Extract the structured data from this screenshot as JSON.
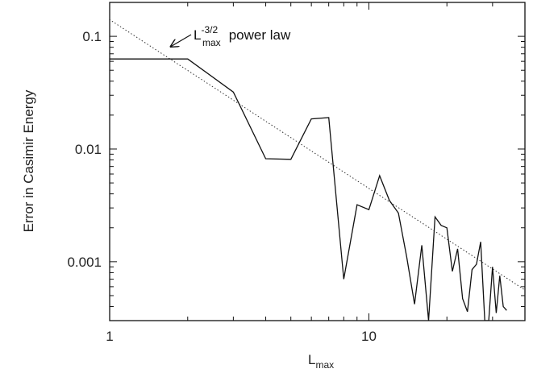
{
  "chart_data": {
    "type": "line",
    "title": "",
    "xlabel": "L",
    "xlabel_sub": "max",
    "ylabel": "Error in Casimir Energy",
    "x_scale": "log",
    "y_scale": "log",
    "xlim": [
      1,
      40
    ],
    "ylim": [
      0.0003,
      0.2
    ],
    "grid": false,
    "x_ticks": [
      1,
      10
    ],
    "x_tick_labels": [
      "1",
      "10"
    ],
    "y_ticks": [
      0.001,
      0.01,
      0.1
    ],
    "y_tick_labels": [
      "0.001",
      "0.01",
      "0.1"
    ],
    "series": [
      {
        "style": "solid",
        "x": [
          1,
          2,
          3,
          4,
          5,
          6,
          7,
          8,
          9,
          10,
          11,
          12,
          13,
          14,
          15,
          16,
          17,
          18,
          19,
          20,
          21,
          22,
          23,
          24,
          25,
          26,
          27,
          28,
          29,
          30,
          31,
          32,
          33,
          34
        ],
        "y": [
          0.063,
          0.063,
          0.032,
          0.0082,
          0.0081,
          0.0185,
          0.019,
          0.0007,
          0.0032,
          0.0029,
          0.0058,
          0.0035,
          0.0027,
          0.0011,
          0.00042,
          0.0014,
          0.0003,
          0.0025,
          0.0021,
          0.002,
          0.00082,
          0.0013,
          0.00047,
          0.00036,
          0.00085,
          0.00095,
          0.0015,
          0.0003,
          0.0003,
          0.0009,
          0.00035,
          0.00075,
          0.0004,
          0.00037
        ]
      },
      {
        "style": "dotted",
        "x": [
          0.95,
          40
        ],
        "y": [
          0.152,
          0.000561
        ]
      }
    ],
    "annotations": [
      {
        "text_main": "L",
        "text_sub": "max",
        "text_sup": "-3/2",
        "text_rest": " power law",
        "arrow_target": [
          1.72,
          0.081
        ]
      }
    ]
  }
}
